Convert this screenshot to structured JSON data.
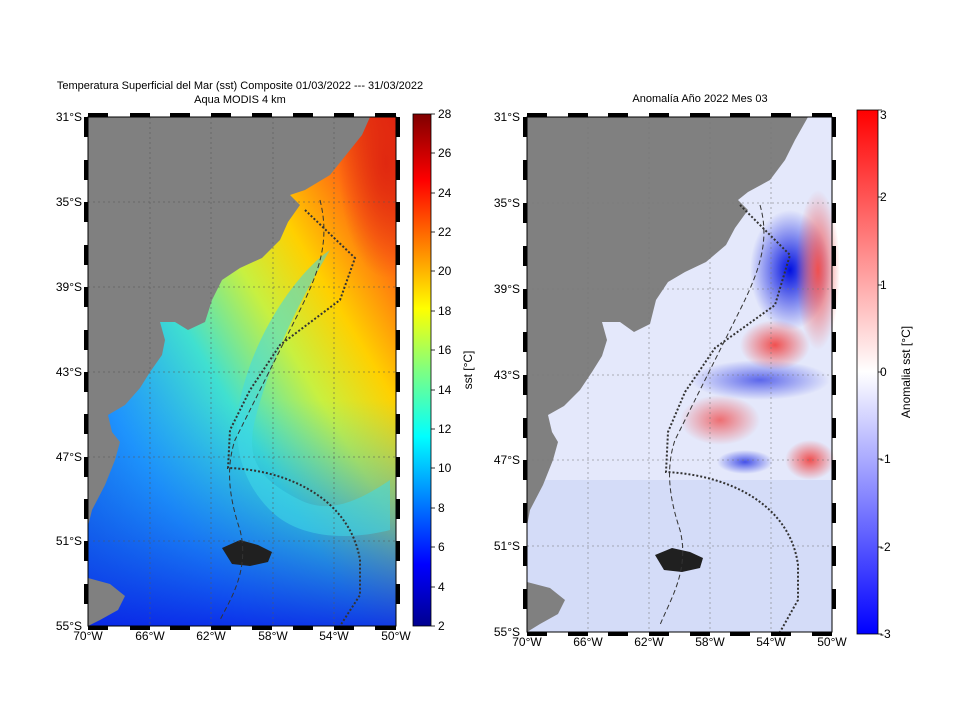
{
  "left_panel": {
    "title_line1": "Temperatura Superficial del Mar (sst)  Composite 01/03/2022 --- 31/03/2022",
    "title_line2": "Aqua MODIS 4 km",
    "lat_labels": [
      "31°S",
      "35°S",
      "39°S",
      "43°S",
      "47°S",
      "51°S",
      "55°S"
    ],
    "lon_labels": [
      "70°W",
      "66°W",
      "62°W",
      "58°W",
      "54°W",
      "50°W"
    ],
    "colorbar": {
      "label": "sst [°C]",
      "ticks": [
        "28",
        "26",
        "24",
        "22",
        "20",
        "18",
        "16",
        "14",
        "12",
        "10",
        "8",
        "6",
        "4",
        "2"
      ],
      "range": [
        2,
        28
      ],
      "colormap": "jet"
    }
  },
  "right_panel": {
    "title": "Anomalía Año 2022 Mes 03",
    "lat_labels": [
      "31°S",
      "35°S",
      "39°S",
      "43°S",
      "47°S",
      "51°S",
      "55°S"
    ],
    "lon_labels": [
      "70°W",
      "66°W",
      "62°W",
      "58°W",
      "54°W",
      "50°W"
    ],
    "colorbar": {
      "label": "Anomalia sst [°C]",
      "ticks": [
        "3",
        "2",
        "1",
        "0",
        "-1",
        "-2",
        "-3"
      ],
      "range": [
        -3,
        3
      ],
      "colormap": "blue-white-red"
    }
  },
  "colors": {
    "land": "#808080",
    "ocean_warm": "#e83010",
    "ocean_cold": "#1030d8",
    "anom_pos": "#e84040",
    "anom_neg": "#2030e0"
  }
}
